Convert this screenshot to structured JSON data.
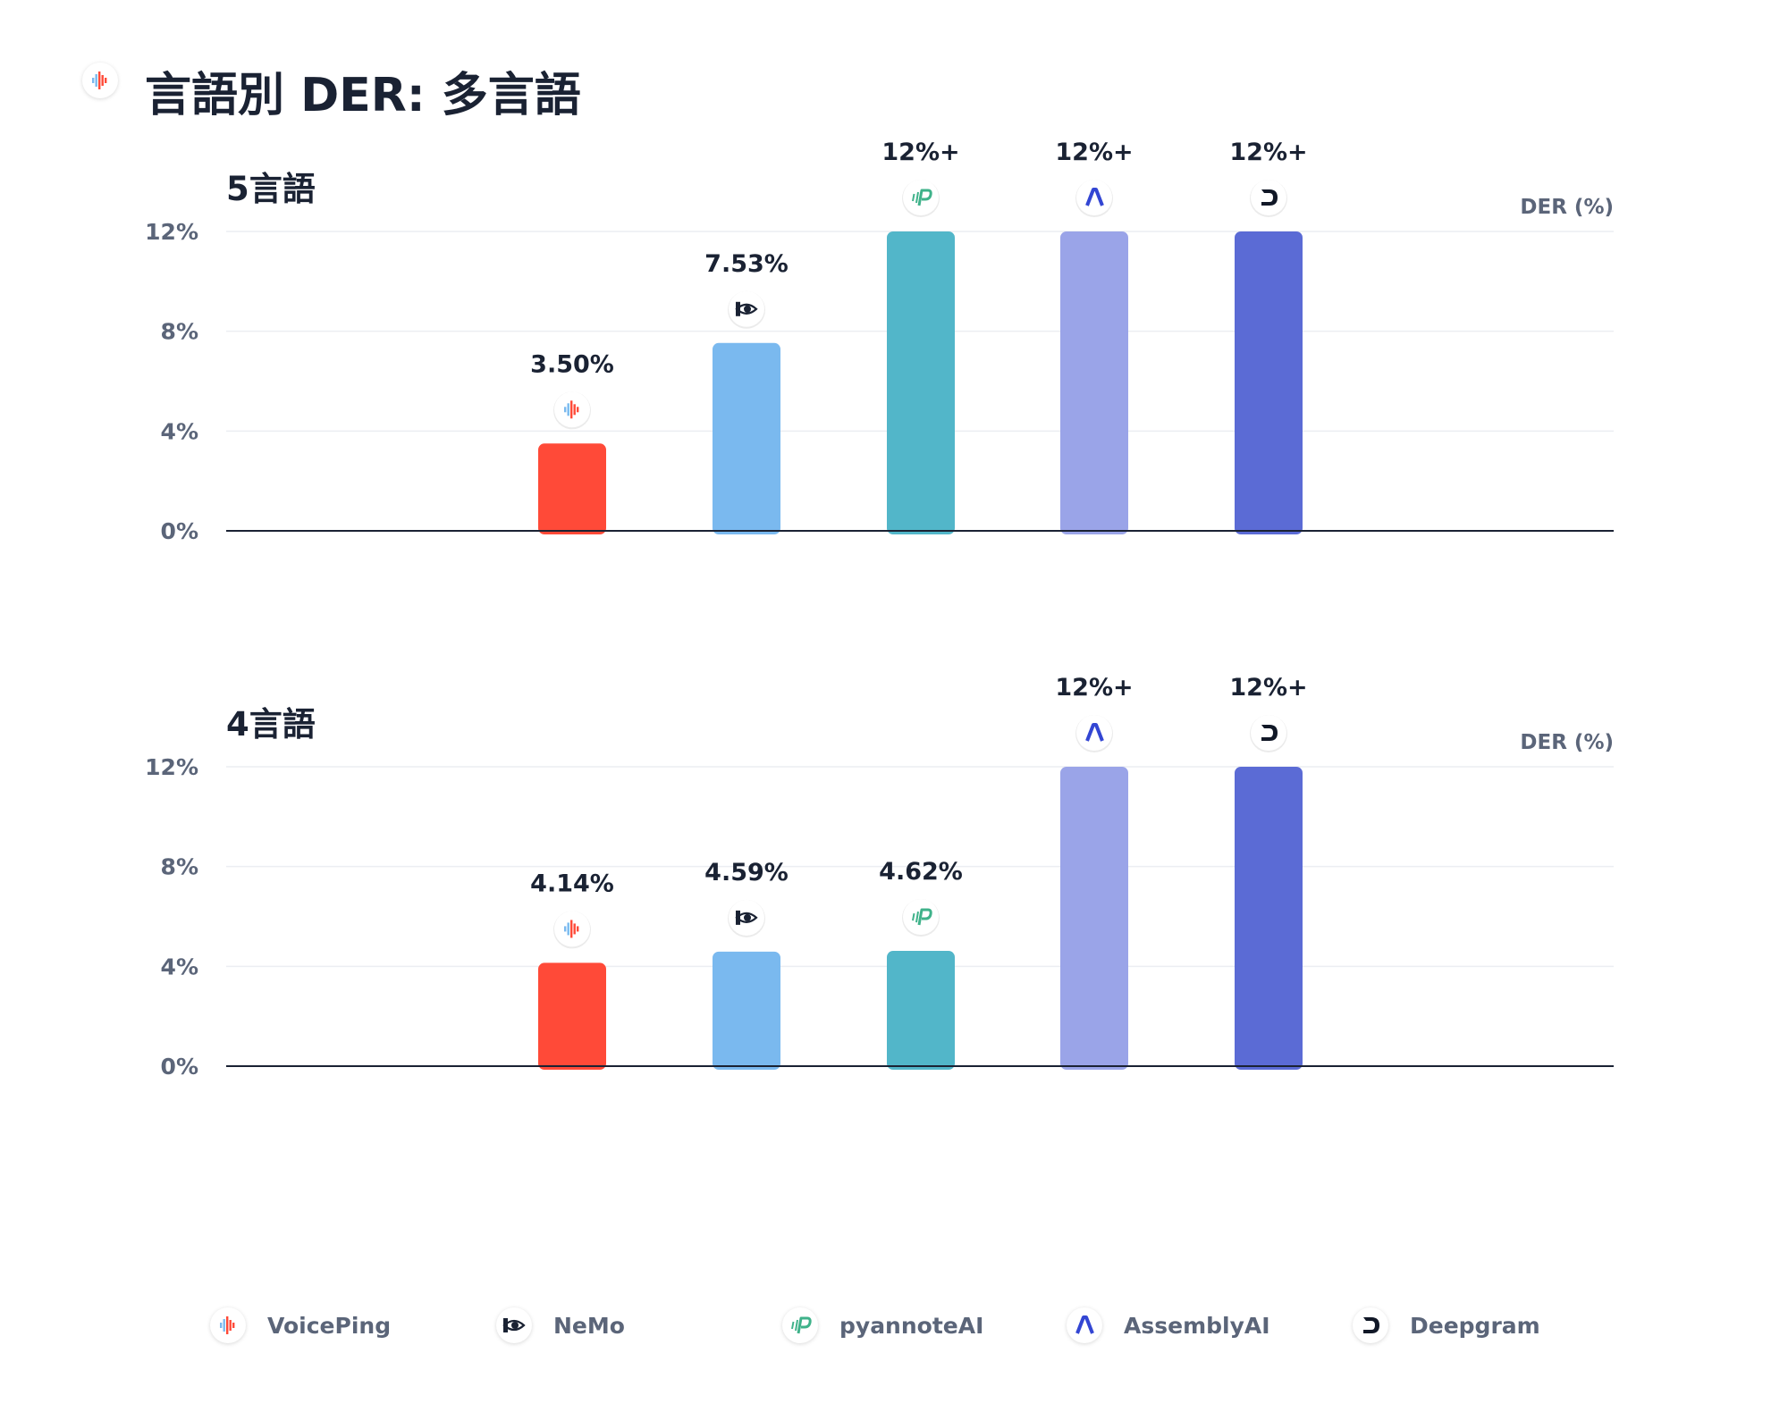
{
  "page": {
    "title": "言語別 DER: 多言語"
  },
  "colors": {
    "VoicePing": "#ff4a38",
    "NeMo": "#7ab9ef",
    "pyannoteAI": "#52b6c9",
    "AssemblyAI": "#9aa4e8",
    "Deepgram": "#5b6bd5",
    "axis": "#1a2233",
    "grid": "#eceef2",
    "tick_text": "#5b6579",
    "label_text": "#1a2233"
  },
  "icons": {
    "VoicePing": "voiceping-waveform-icon",
    "NeMo": "nvidia-eye-icon",
    "pyannoteAI": "pyannote-p-icon",
    "AssemblyAI": "assemblyai-lambda-icon",
    "Deepgram": "deepgram-d-icon"
  },
  "legend": [
    {
      "name": "VoicePing"
    },
    {
      "name": "NeMo"
    },
    {
      "name": "pyannoteAI"
    },
    {
      "name": "AssemblyAI"
    },
    {
      "name": "Deepgram"
    }
  ],
  "chart_data": [
    {
      "type": "bar",
      "title": "5言語",
      "ylabel": "DER (%)",
      "ylim": [
        0,
        12
      ],
      "yticks": [
        "0%",
        "4%",
        "8%",
        "12%"
      ],
      "grid": true,
      "categories": [
        "VoicePing",
        "NeMo",
        "pyannoteAI",
        "AssemblyAI",
        "Deepgram"
      ],
      "values": [
        3.5,
        7.53,
        12,
        12,
        12
      ],
      "value_labels": [
        "3.50%",
        "7.53%",
        "12%+",
        "12%+",
        "12%+"
      ]
    },
    {
      "type": "bar",
      "title": "4言語",
      "ylabel": "DER (%)",
      "ylim": [
        0,
        12
      ],
      "yticks": [
        "0%",
        "4%",
        "8%",
        "12%"
      ],
      "grid": true,
      "categories": [
        "VoicePing",
        "NeMo",
        "pyannoteAI",
        "AssemblyAI",
        "Deepgram"
      ],
      "values": [
        4.14,
        4.59,
        4.62,
        12,
        12
      ],
      "value_labels": [
        "4.14%",
        "4.59%",
        "4.62%",
        "12%+",
        "12%+"
      ]
    }
  ]
}
